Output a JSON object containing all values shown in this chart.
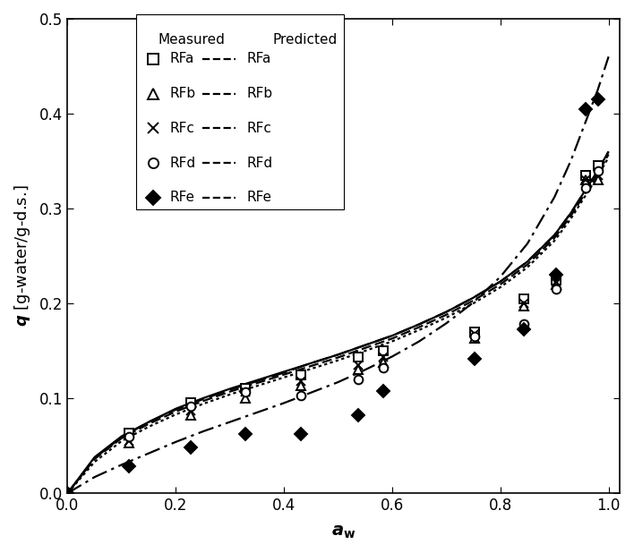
{
  "xlabel_text": "a",
  "xlabel_sub": "w",
  "ylabel": "q [g-water/g-d.s.]",
  "xlim": [
    0,
    1.02
  ],
  "ylim": [
    0,
    0.5
  ],
  "xticks": [
    0,
    0.2,
    0.4,
    0.6,
    0.8,
    1.0
  ],
  "yticks": [
    0,
    0.1,
    0.2,
    0.3,
    0.4,
    0.5
  ],
  "series_names": [
    "RFa",
    "RFb",
    "RFc",
    "RFd",
    "RFe"
  ],
  "measured": {
    "RFa": {
      "x": [
        0.0,
        0.113,
        0.228,
        0.328,
        0.432,
        0.538,
        0.584,
        0.753,
        0.844,
        0.903,
        0.957,
        0.981
      ],
      "y": [
        0.0,
        0.063,
        0.095,
        0.11,
        0.125,
        0.143,
        0.15,
        0.17,
        0.205,
        0.225,
        0.335,
        0.345
      ]
    },
    "RFb": {
      "x": [
        0.0,
        0.113,
        0.228,
        0.328,
        0.432,
        0.538,
        0.584,
        0.753,
        0.844,
        0.903,
        0.957,
        0.981
      ],
      "y": [
        0.0,
        0.053,
        0.082,
        0.1,
        0.113,
        0.13,
        0.138,
        0.163,
        0.197,
        0.22,
        0.33,
        0.33
      ]
    },
    "RFc": {
      "x": [
        0.0,
        0.113,
        0.228,
        0.328,
        0.432,
        0.538,
        0.584,
        0.753,
        0.844,
        0.903,
        0.957,
        0.981
      ],
      "y": [
        0.0,
        0.055,
        0.087,
        0.107,
        0.118,
        0.135,
        0.143,
        0.168,
        0.2,
        0.222,
        0.33,
        0.335
      ]
    },
    "RFd": {
      "x": [
        0.0,
        0.113,
        0.228,
        0.328,
        0.432,
        0.538,
        0.584,
        0.753,
        0.844,
        0.903,
        0.957,
        0.981
      ],
      "y": [
        0.0,
        0.06,
        0.092,
        0.107,
        0.103,
        0.12,
        0.132,
        0.165,
        0.178,
        0.215,
        0.322,
        0.34
      ]
    },
    "RFe": {
      "x": [
        0.0,
        0.113,
        0.228,
        0.328,
        0.432,
        0.538,
        0.584,
        0.753,
        0.844,
        0.903,
        0.957,
        0.981
      ],
      "y": [
        0.0,
        0.028,
        0.048,
        0.062,
        0.062,
        0.082,
        0.108,
        0.142,
        0.173,
        0.23,
        0.405,
        0.415
      ]
    }
  },
  "predicted": {
    "RFa": {
      "x": [
        0.0,
        0.05,
        0.1,
        0.15,
        0.2,
        0.25,
        0.3,
        0.35,
        0.4,
        0.45,
        0.5,
        0.55,
        0.6,
        0.65,
        0.7,
        0.75,
        0.8,
        0.85,
        0.9,
        0.93,
        0.96,
        0.98,
        1.0
      ],
      "y": [
        0.0,
        0.038,
        0.06,
        0.075,
        0.089,
        0.1,
        0.11,
        0.119,
        0.128,
        0.137,
        0.146,
        0.156,
        0.166,
        0.178,
        0.191,
        0.206,
        0.223,
        0.244,
        0.272,
        0.295,
        0.322,
        0.34,
        0.36
      ]
    },
    "RFb": {
      "x": [
        0.0,
        0.05,
        0.1,
        0.15,
        0.2,
        0.25,
        0.3,
        0.35,
        0.4,
        0.45,
        0.5,
        0.55,
        0.6,
        0.65,
        0.7,
        0.75,
        0.8,
        0.85,
        0.9,
        0.93,
        0.96,
        0.98,
        1.0
      ],
      "y": [
        0.0,
        0.033,
        0.055,
        0.07,
        0.083,
        0.094,
        0.104,
        0.113,
        0.122,
        0.131,
        0.14,
        0.15,
        0.16,
        0.172,
        0.185,
        0.2,
        0.217,
        0.238,
        0.266,
        0.289,
        0.316,
        0.334,
        0.354
      ]
    },
    "RFc": {
      "x": [
        0.0,
        0.05,
        0.1,
        0.15,
        0.2,
        0.25,
        0.3,
        0.35,
        0.4,
        0.45,
        0.5,
        0.55,
        0.6,
        0.65,
        0.7,
        0.75,
        0.8,
        0.85,
        0.9,
        0.93,
        0.96,
        0.98,
        1.0
      ],
      "y": [
        0.0,
        0.036,
        0.058,
        0.073,
        0.086,
        0.097,
        0.107,
        0.116,
        0.125,
        0.134,
        0.143,
        0.153,
        0.163,
        0.175,
        0.188,
        0.203,
        0.22,
        0.241,
        0.269,
        0.292,
        0.319,
        0.337,
        0.357
      ]
    },
    "RFd": {
      "x": [
        0.0,
        0.05,
        0.1,
        0.15,
        0.2,
        0.25,
        0.3,
        0.35,
        0.4,
        0.45,
        0.5,
        0.55,
        0.6,
        0.65,
        0.7,
        0.75,
        0.8,
        0.85,
        0.9,
        0.93,
        0.96,
        0.98,
        1.0
      ],
      "y": [
        0.0,
        0.037,
        0.059,
        0.075,
        0.088,
        0.099,
        0.109,
        0.118,
        0.127,
        0.137,
        0.146,
        0.156,
        0.166,
        0.178,
        0.191,
        0.206,
        0.223,
        0.244,
        0.272,
        0.295,
        0.322,
        0.34,
        0.36
      ]
    },
    "RFe": {
      "x": [
        0.0,
        0.05,
        0.1,
        0.15,
        0.2,
        0.25,
        0.3,
        0.35,
        0.4,
        0.45,
        0.5,
        0.55,
        0.6,
        0.65,
        0.7,
        0.75,
        0.8,
        0.85,
        0.9,
        0.93,
        0.96,
        0.98,
        1.0
      ],
      "y": [
        0.0,
        0.017,
        0.03,
        0.042,
        0.054,
        0.065,
        0.075,
        0.085,
        0.095,
        0.106,
        0.117,
        0.13,
        0.144,
        0.16,
        0.179,
        0.201,
        0.228,
        0.263,
        0.312,
        0.35,
        0.395,
        0.425,
        0.46
      ]
    }
  },
  "markers": {
    "RFa": {
      "marker": "s",
      "mfc": "white",
      "mec": "black"
    },
    "RFb": {
      "marker": "^",
      "mfc": "white",
      "mec": "black"
    },
    "RFc": {
      "marker": "x",
      "mfc": "black",
      "mec": "black"
    },
    "RFd": {
      "marker": "o",
      "mfc": "white",
      "mec": "black"
    },
    "RFe": {
      "marker": "D",
      "mfc": "black",
      "mec": "black"
    }
  },
  "linestyles": {
    "RFa": "solid",
    "RFb": "dotted",
    "RFc": "dashed_short",
    "RFd": "dashed_long",
    "RFe": "dashdot"
  },
  "linewidth": 1.6,
  "markersize": 7,
  "markeredgewidth": 1.4
}
